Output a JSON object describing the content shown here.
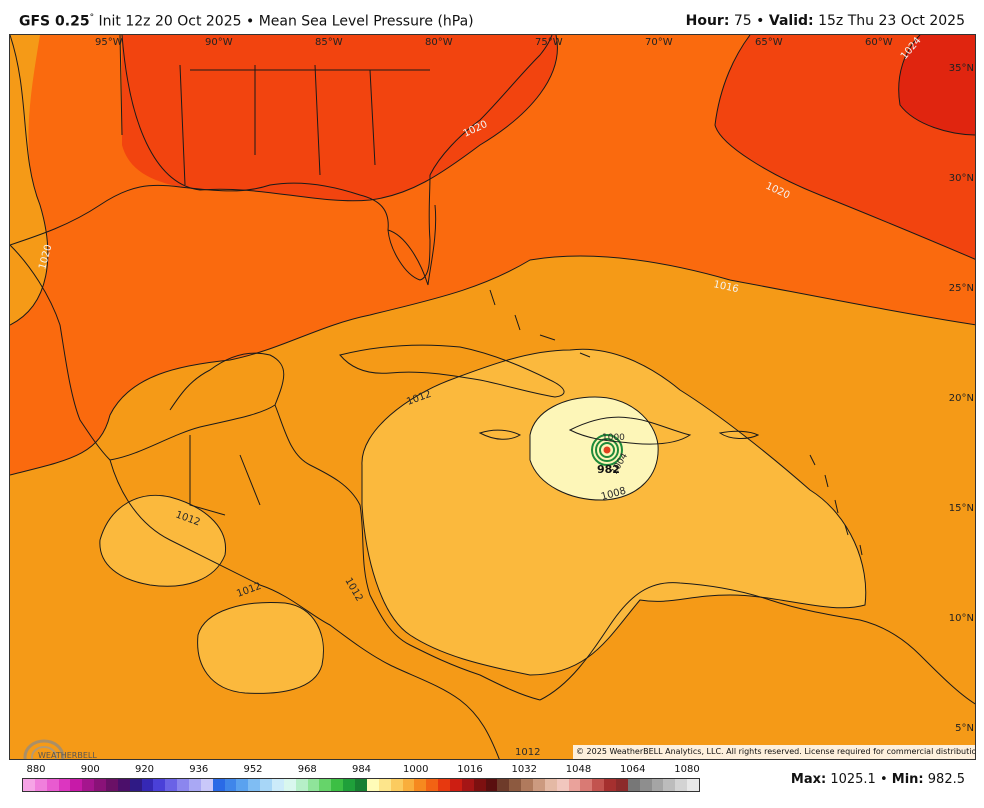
{
  "header": {
    "model": "GFS 0.25",
    "degree": "°",
    "init": "Init 12z 20 Oct 2025",
    "bullet": "•",
    "field": "Mean Sea Level Pressure (hPa)",
    "hour_label": "Hour:",
    "hour_value": "75",
    "valid_label": "Valid:",
    "valid_value": "15z Thu 23 Oct 2025"
  },
  "map": {
    "lon_labels": [
      "95°W",
      "90°W",
      "85°W",
      "80°W",
      "75°W",
      "70°W",
      "65°W",
      "60°W"
    ],
    "lat_labels": [
      "35°N",
      "30°N",
      "25°N",
      "20°N",
      "15°N",
      "10°N",
      "5°N"
    ],
    "isobar_labels": [
      "1020",
      "1020",
      "1020",
      "1024",
      "1016",
      "1016",
      "1012",
      "1012",
      "1012",
      "1012",
      "1012",
      "1008",
      "1000",
      "1004"
    ],
    "center_label": "982",
    "colors": {
      "p1024": "#e0250f",
      "p1020": "#f2440f",
      "p1016": "#fa6a0e",
      "p1012": "#f59a17",
      "p1008": "#fbb93d",
      "p1004": "#fde58b",
      "p1000": "#fdf6b8",
      "land_line": "#1a1a1a",
      "storm_green": "#1f8a3a",
      "storm_core": "#e0401e"
    }
  },
  "copyright": "© 2025 WeatherBELL Analytics, LLC. All rights reserved. License required for commercial distribution.",
  "logo": {
    "text": "WEATHERBELL"
  },
  "colorbar": {
    "ticks": [
      "880",
      "900",
      "920",
      "936",
      "952",
      "968",
      "984",
      "1000",
      "1016",
      "1032",
      "1048",
      "1064",
      "1080"
    ],
    "colors": [
      "#f6a4e6",
      "#f07fdc",
      "#e85bd0",
      "#dc36c0",
      "#c71aa8",
      "#a5158e",
      "#8a1278",
      "#6a1066",
      "#4b0f6a",
      "#2f1a85",
      "#3528b5",
      "#4a40d8",
      "#6a62e6",
      "#8b86ee",
      "#a9a8f4",
      "#c9c8f9",
      "#2a6ae6",
      "#3f86ea",
      "#5aa2ef",
      "#7fbdf3",
      "#a7d6f7",
      "#ccebfa",
      "#d9f7ee",
      "#b6efc8",
      "#8fe49a",
      "#66d46a",
      "#3cbf44",
      "#1fa03a",
      "#178032",
      "#fffcb8",
      "#fde58b",
      "#fbcb5f",
      "#f9ae3c",
      "#f6891f",
      "#f26314",
      "#e7390f",
      "#cd1e12",
      "#a51515",
      "#7d1010",
      "#5a0f0f",
      "#6e3b2a",
      "#8d5a40",
      "#b07a5d",
      "#cc9a80",
      "#e4b9a5",
      "#f1c7be",
      "#eaa29b",
      "#d97a74",
      "#c2534f",
      "#a5302f",
      "#8c2b2b",
      "#777777",
      "#8e8e8e",
      "#a5a5a5",
      "#bcbcbc",
      "#d3d3d3",
      "#e8e8e8"
    ]
  },
  "stats": {
    "max_label": "Max:",
    "max_value": "1025.1",
    "min_label": "Min:",
    "min_value": "982.5",
    "bullet": "•"
  }
}
